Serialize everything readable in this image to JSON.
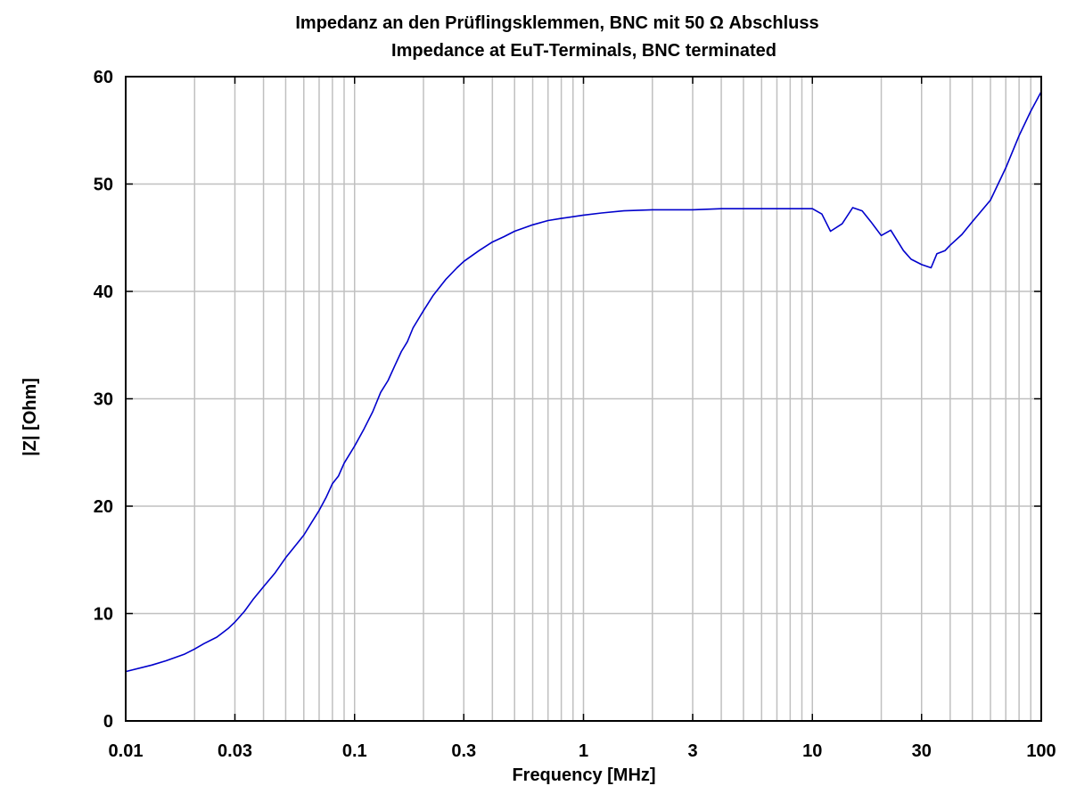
{
  "chart_data": {
    "type": "line",
    "title": "Impedanz an den Prüflingsklemmen, BNC mit 50 Ω Abschluss",
    "subtitle": "Impedance at EuT-Terminals, BNC terminated",
    "xlabel": "Frequency [MHz]",
    "ylabel": "|Z| [Ohm]",
    "x_scale": "log",
    "xlim": [
      0.01,
      100
    ],
    "ylim": [
      0,
      60
    ],
    "grid": true,
    "x_ticks": [
      0.01,
      0.03,
      0.1,
      0.3,
      1,
      3,
      10,
      30,
      100
    ],
    "x_tick_labels": [
      "0.01",
      "0.03",
      "0.1",
      "0.3",
      "1",
      "3",
      "10",
      "30",
      "100"
    ],
    "y_ticks": [
      0,
      10,
      20,
      30,
      40,
      50,
      60
    ],
    "y_tick_labels": [
      "0",
      "10",
      "20",
      "30",
      "40",
      "50",
      "60"
    ],
    "line_color": "#0000cc",
    "series": [
      {
        "x": [
          0.01,
          0.013,
          0.015,
          0.018,
          0.02,
          0.022,
          0.025,
          0.028,
          0.03,
          0.033,
          0.036,
          0.04,
          0.045,
          0.05,
          0.055,
          0.06,
          0.065,
          0.07,
          0.075,
          0.08,
          0.085,
          0.09,
          0.1,
          0.11,
          0.12,
          0.13,
          0.14,
          0.15,
          0.16,
          0.17,
          0.18,
          0.2,
          0.22,
          0.25,
          0.28,
          0.3,
          0.35,
          0.4,
          0.45,
          0.5,
          0.6,
          0.7,
          0.8,
          1.0,
          1.2,
          1.5,
          2,
          3,
          4,
          5,
          6,
          8,
          10,
          11,
          12,
          13.5,
          15,
          16.5,
          18,
          20,
          22,
          25,
          27,
          30,
          33,
          35,
          38,
          40,
          45,
          50,
          60,
          70,
          80,
          90,
          100
        ],
        "values": [
          4.6,
          5.2,
          5.6,
          6.2,
          6.7,
          7.2,
          7.8,
          8.6,
          9.2,
          10.2,
          11.3,
          12.5,
          13.8,
          15.2,
          16.3,
          17.3,
          18.5,
          19.6,
          20.8,
          22.1,
          22.8,
          24.0,
          25.6,
          27.2,
          28.8,
          30.6,
          31.7,
          33.1,
          34.4,
          35.3,
          36.6,
          38.2,
          39.6,
          41.1,
          42.2,
          42.8,
          43.8,
          44.6,
          45.1,
          45.6,
          46.2,
          46.6,
          46.8,
          47.1,
          47.3,
          47.5,
          47.6,
          47.6,
          47.7,
          47.7,
          47.7,
          47.7,
          47.7,
          47.2,
          45.6,
          46.3,
          47.8,
          47.5,
          46.5,
          45.2,
          45.7,
          43.8,
          43.0,
          42.5,
          42.2,
          43.5,
          43.8,
          44.3,
          45.3,
          46.5,
          48.5,
          51.5,
          54.5,
          56.8,
          58.6
        ]
      }
    ]
  }
}
